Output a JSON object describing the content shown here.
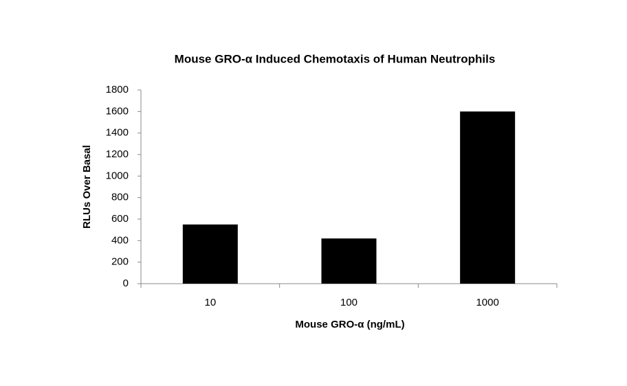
{
  "chart_data": {
    "type": "bar",
    "title": "Mouse GRO-α Induced Chemotaxis of Human Neutrophils",
    "x_label": "Mouse GRO-α (ng/mL)",
    "y_label": "RLUs Over Basal",
    "categories": [
      "10",
      "100",
      "1000"
    ],
    "values": [
      550,
      420,
      1600
    ],
    "color": "#000000",
    "ylim": [
      0,
      1800
    ],
    "yticks": [
      0,
      200,
      400,
      600,
      800,
      1000,
      1200,
      1400,
      1600,
      1800
    ],
    "grid": false
  }
}
